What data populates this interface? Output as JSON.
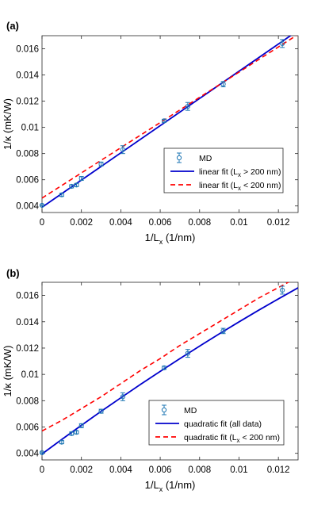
{
  "chart_data": [
    {
      "panel_label": "(a)",
      "type": "scatter",
      "xlim": [
        0,
        0.013
      ],
      "ylim": [
        0.0035,
        0.017
      ],
      "xticks": [
        0,
        0.002,
        0.004,
        0.006,
        0.008,
        0.01,
        0.012
      ],
      "xtick_labels": [
        "0",
        "0.002",
        "0.004",
        "0.006",
        "0.008",
        "0.01",
        "0.012"
      ],
      "yticks": [
        0.004,
        0.006,
        0.008,
        0.01,
        0.012,
        0.014,
        0.016
      ],
      "ytick_labels": [
        "0.004",
        "0.006",
        "0.008",
        "0.01",
        "0.012",
        "0.014",
        "0.016"
      ],
      "xlabel": "1/L",
      "xlabel_sub": "x",
      "xlabel_tail": " (1/nm)",
      "ylabel": "1/κ (mK/W)",
      "grid": false,
      "legend_position": "lower-right",
      "series": [
        {
          "name": "MD",
          "kind": "errorbar",
          "color": "#1f77b4",
          "x": [
            0,
            0.001,
            0.0015,
            0.00175,
            0.002,
            0.003,
            0.0041,
            0.0062,
            0.0074,
            0.0092,
            0.0122
          ],
          "y": [
            0.00405,
            0.00485,
            0.0055,
            0.0056,
            0.0061,
            0.0072,
            0.0083,
            0.0105,
            0.0116,
            0.0133,
            0.0164
          ],
          "err": [
            5e-05,
            0.00012,
            0.00012,
            0.00012,
            0.00015,
            0.00015,
            0.0003,
            0.00012,
            0.0003,
            0.0002,
            0.0003
          ]
        },
        {
          "name": "linear fit (L",
          "name_sub": "x",
          "name_tail": " > 200 nm)",
          "kind": "line",
          "color": "#0000cc",
          "dash": false,
          "x": [
            0,
            0.013
          ],
          "y": [
            0.0039,
            0.0174
          ]
        },
        {
          "name": "linear fit (L",
          "name_sub": "x",
          "name_tail": " < 200 nm)",
          "kind": "line",
          "color": "#ff0000",
          "dash": true,
          "x": [
            0,
            0.013
          ],
          "y": [
            0.0046,
            0.0171
          ]
        }
      ]
    },
    {
      "panel_label": "(b)",
      "type": "scatter",
      "xlim": [
        0,
        0.013
      ],
      "ylim": [
        0.0035,
        0.017
      ],
      "xticks": [
        0,
        0.002,
        0.004,
        0.006,
        0.008,
        0.01,
        0.012
      ],
      "xtick_labels": [
        "0",
        "0.002",
        "0.004",
        "0.006",
        "0.008",
        "0.01",
        "0.012"
      ],
      "yticks": [
        0.004,
        0.006,
        0.008,
        0.01,
        0.012,
        0.014,
        0.016
      ],
      "ytick_labels": [
        "0.004",
        "0.006",
        "0.008",
        "0.01",
        "0.012",
        "0.014",
        "0.016"
      ],
      "xlabel": "1/L",
      "xlabel_sub": "x",
      "xlabel_tail": " (1/nm)",
      "ylabel": "1/κ (mK/W)",
      "grid": false,
      "legend_position": "lower-right",
      "series": [
        {
          "name": "MD",
          "kind": "errorbar",
          "color": "#1f77b4",
          "x": [
            0,
            0.001,
            0.0015,
            0.00175,
            0.002,
            0.003,
            0.0041,
            0.0062,
            0.0074,
            0.0092,
            0.0122
          ],
          "y": [
            0.00405,
            0.00485,
            0.0055,
            0.0056,
            0.0061,
            0.0072,
            0.0083,
            0.0105,
            0.0116,
            0.0133,
            0.0164
          ],
          "err": [
            5e-05,
            0.00012,
            0.00012,
            0.00012,
            0.00015,
            0.00015,
            0.0003,
            0.00012,
            0.0003,
            0.0002,
            0.0003
          ]
        },
        {
          "name": "quadratic fit (all data)",
          "kind": "line",
          "color": "#0000cc",
          "dash": false,
          "x": [
            0,
            0.001,
            0.002,
            0.003,
            0.004,
            0.005,
            0.006,
            0.007,
            0.008,
            0.009,
            0.01,
            0.011,
            0.012,
            0.013
          ],
          "y": [
            0.00395,
            0.00505,
            0.00613,
            0.00719,
            0.00822,
            0.00924,
            0.01023,
            0.0112,
            0.01215,
            0.01308,
            0.01399,
            0.01488,
            0.01574,
            0.01658
          ]
        },
        {
          "name": "quadratic fit (L",
          "name_sub": "x",
          "name_tail": " < 200 nm)",
          "kind": "line",
          "color": "#ff0000",
          "dash": true,
          "x": [
            0,
            0.001,
            0.002,
            0.003,
            0.004,
            0.005,
            0.006,
            0.007,
            0.008,
            0.009,
            0.01,
            0.011,
            0.012,
            0.013
          ],
          "y": [
            0.0057,
            0.0065,
            0.0074,
            0.0083,
            0.0093,
            0.0103,
            0.0112,
            0.0122,
            0.0131,
            0.014,
            0.0149,
            0.0158,
            0.0166,
            0.0174
          ]
        }
      ]
    }
  ]
}
